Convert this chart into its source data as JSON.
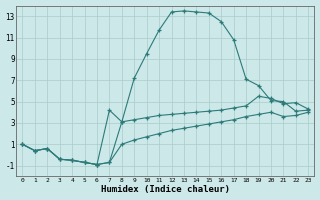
{
  "xlabel": "Humidex (Indice chaleur)",
  "bg_color": "#cce8e8",
  "line_color": "#2d7a7a",
  "grid_color": "#aacccc",
  "xlim": [
    -0.5,
    23.5
  ],
  "ylim": [
    -2,
    14
  ],
  "xticks": [
    0,
    1,
    2,
    3,
    4,
    5,
    6,
    7,
    8,
    9,
    10,
    11,
    12,
    13,
    14,
    15,
    16,
    17,
    18,
    19,
    20,
    21,
    22,
    23
  ],
  "yticks": [
    -1,
    1,
    3,
    5,
    7,
    9,
    11,
    13
  ],
  "line1_x": [
    0,
    1,
    2,
    3,
    4,
    5,
    6,
    7,
    8,
    9,
    10,
    11,
    12,
    13,
    14,
    15,
    16,
    17,
    18,
    19,
    20,
    21,
    22,
    23
  ],
  "line1_y": [
    1.0,
    0.4,
    0.6,
    -0.4,
    -0.5,
    -0.7,
    -0.9,
    -0.7,
    3.1,
    7.2,
    9.5,
    11.7,
    13.4,
    13.5,
    13.4,
    13.3,
    12.5,
    10.8,
    7.1,
    6.5,
    5.1,
    5.0,
    4.1,
    4.2
  ],
  "line2_x": [
    0,
    1,
    2,
    3,
    4,
    5,
    6,
    7,
    8,
    9,
    10,
    11,
    12,
    13,
    14,
    15,
    16,
    17,
    18,
    19,
    20,
    21,
    22,
    23
  ],
  "line2_y": [
    1.0,
    0.4,
    0.6,
    -0.4,
    -0.5,
    -0.7,
    -0.9,
    4.2,
    3.1,
    3.3,
    3.5,
    3.7,
    3.8,
    3.9,
    4.0,
    4.1,
    4.2,
    4.4,
    4.6,
    5.5,
    5.3,
    4.8,
    4.9,
    4.3
  ],
  "line3_x": [
    0,
    1,
    2,
    3,
    4,
    5,
    6,
    7,
    8,
    9,
    10,
    11,
    12,
    13,
    14,
    15,
    16,
    17,
    18,
    19,
    20,
    21,
    22,
    23
  ],
  "line3_y": [
    1.0,
    0.4,
    0.6,
    -0.4,
    -0.5,
    -0.7,
    -0.9,
    -0.7,
    1.0,
    1.4,
    1.7,
    2.0,
    2.3,
    2.5,
    2.7,
    2.9,
    3.1,
    3.3,
    3.6,
    3.8,
    4.0,
    3.6,
    3.7,
    4.0
  ]
}
